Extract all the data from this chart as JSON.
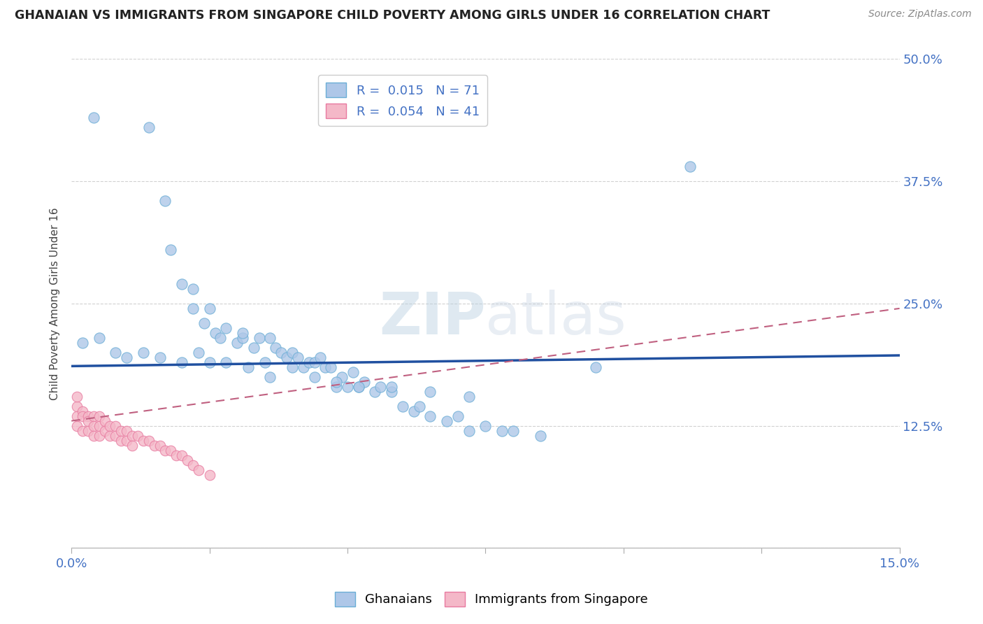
{
  "title": "GHANAIAN VS IMMIGRANTS FROM SINGAPORE CHILD POVERTY AMONG GIRLS UNDER 16 CORRELATION CHART",
  "source": "Source: ZipAtlas.com",
  "ylabel": "Child Poverty Among Girls Under 16",
  "ytick_values": [
    0.0,
    0.125,
    0.25,
    0.375,
    0.5
  ],
  "ytick_labels_right": [
    "",
    "12.5%",
    "25.0%",
    "37.5%",
    "50.0%"
  ],
  "xlim": [
    0.0,
    0.15
  ],
  "ylim": [
    0.0,
    0.5
  ],
  "color_blue_face": "#aec7e8",
  "color_blue_edge": "#6baed6",
  "color_pink_face": "#f4b8c8",
  "color_pink_edge": "#e87aa0",
  "trend_blue_color": "#2050a0",
  "trend_pink_color": "#c06080",
  "watermark_text": "ZIPatlas",
  "watermark_color": "#c8d8ea",
  "grid_color": "#cccccc",
  "tick_color": "#4472c4",
  "blue_r": 0.015,
  "blue_n": 71,
  "pink_r": 0.054,
  "pink_n": 41,
  "blue_trend_intercept": 0.183,
  "blue_trend_slope": 0.08,
  "pink_trend_intercept": 0.105,
  "pink_trend_slope": 1.0,
  "blue_x": [
    0.004,
    0.014,
    0.017,
    0.018,
    0.02,
    0.022,
    0.022,
    0.024,
    0.025,
    0.026,
    0.027,
    0.028,
    0.03,
    0.031,
    0.031,
    0.033,
    0.034,
    0.035,
    0.036,
    0.037,
    0.038,
    0.039,
    0.04,
    0.041,
    0.042,
    0.043,
    0.044,
    0.045,
    0.046,
    0.047,
    0.048,
    0.049,
    0.05,
    0.051,
    0.052,
    0.053,
    0.055,
    0.056,
    0.058,
    0.06,
    0.062,
    0.063,
    0.065,
    0.068,
    0.07,
    0.072,
    0.075,
    0.078,
    0.08,
    0.085,
    0.002,
    0.005,
    0.008,
    0.01,
    0.013,
    0.016,
    0.02,
    0.023,
    0.025,
    0.028,
    0.032,
    0.036,
    0.04,
    0.044,
    0.048,
    0.052,
    0.058,
    0.065,
    0.072,
    0.112,
    0.095
  ],
  "blue_y": [
    0.44,
    0.43,
    0.355,
    0.305,
    0.27,
    0.265,
    0.245,
    0.23,
    0.245,
    0.22,
    0.215,
    0.225,
    0.21,
    0.215,
    0.22,
    0.205,
    0.215,
    0.19,
    0.215,
    0.205,
    0.2,
    0.195,
    0.2,
    0.195,
    0.185,
    0.19,
    0.19,
    0.195,
    0.185,
    0.185,
    0.165,
    0.175,
    0.165,
    0.18,
    0.165,
    0.17,
    0.16,
    0.165,
    0.16,
    0.145,
    0.14,
    0.145,
    0.135,
    0.13,
    0.135,
    0.12,
    0.125,
    0.12,
    0.12,
    0.115,
    0.21,
    0.215,
    0.2,
    0.195,
    0.2,
    0.195,
    0.19,
    0.2,
    0.19,
    0.19,
    0.185,
    0.175,
    0.185,
    0.175,
    0.17,
    0.165,
    0.165,
    0.16,
    0.155,
    0.39,
    0.185
  ],
  "pink_x": [
    0.001,
    0.001,
    0.001,
    0.002,
    0.002,
    0.002,
    0.003,
    0.003,
    0.003,
    0.004,
    0.004,
    0.004,
    0.005,
    0.005,
    0.005,
    0.006,
    0.006,
    0.007,
    0.007,
    0.008,
    0.008,
    0.009,
    0.009,
    0.01,
    0.01,
    0.011,
    0.011,
    0.012,
    0.013,
    0.014,
    0.015,
    0.016,
    0.017,
    0.018,
    0.019,
    0.02,
    0.021,
    0.022,
    0.023,
    0.025,
    0.001
  ],
  "pink_y": [
    0.145,
    0.135,
    0.125,
    0.14,
    0.135,
    0.12,
    0.135,
    0.13,
    0.12,
    0.135,
    0.125,
    0.115,
    0.135,
    0.125,
    0.115,
    0.13,
    0.12,
    0.125,
    0.115,
    0.125,
    0.115,
    0.12,
    0.11,
    0.12,
    0.11,
    0.115,
    0.105,
    0.115,
    0.11,
    0.11,
    0.105,
    0.105,
    0.1,
    0.1,
    0.095,
    0.095,
    0.09,
    0.085,
    0.08,
    0.075,
    0.155
  ]
}
